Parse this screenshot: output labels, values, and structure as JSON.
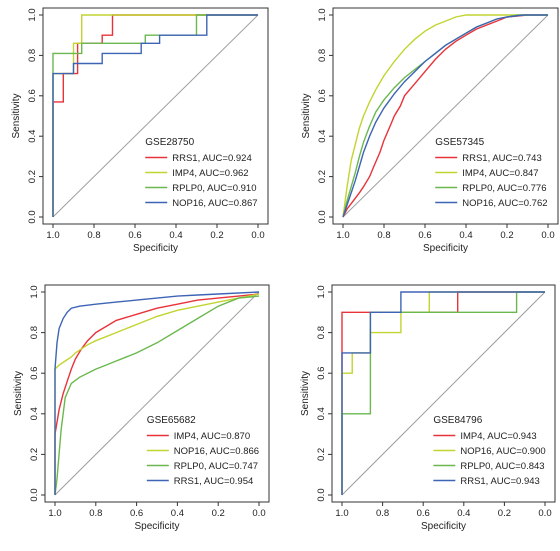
{
  "colors": {
    "red": "#e8333a",
    "yellow": "#c2d430",
    "green": "#6ab84e",
    "blue": "#3e64b6",
    "diag": "#9e9e9e",
    "axis": "#333333"
  },
  "chart_data": [
    {
      "type": "line",
      "dataset": "GSE28750",
      "xlabel": "Specificity",
      "ylabel": "Sensitivity",
      "xlim": [
        1.0,
        0.0
      ],
      "ylim": [
        0.0,
        1.0
      ],
      "x_ticks": [
        "1.0",
        "0.8",
        "0.6",
        "0.4",
        "0.2",
        "0.0"
      ],
      "y_ticks": [
        "0.0",
        "0.2",
        "0.4",
        "0.6",
        "0.8",
        "1.0"
      ],
      "legend_position": "bottom-right",
      "series": [
        {
          "name": "RRS1, AUC=0.924",
          "color": "red",
          "points": [
            [
              1,
              0
            ],
            [
              1,
              0.57
            ],
            [
              0.95,
              0.57
            ],
            [
              0.95,
              0.71
            ],
            [
              0.88,
              0.71
            ],
            [
              0.88,
              0.86
            ],
            [
              0.76,
              0.86
            ],
            [
              0.76,
              0.9
            ],
            [
              0.71,
              0.9
            ],
            [
              0.71,
              1
            ],
            [
              0,
              1
            ]
          ]
        },
        {
          "name": "IMP4, AUC=0.962",
          "color": "yellow",
          "points": [
            [
              1,
              0
            ],
            [
              1,
              0.71
            ],
            [
              0.9,
              0.71
            ],
            [
              0.9,
              0.86
            ],
            [
              0.86,
              0.86
            ],
            [
              0.86,
              1
            ],
            [
              0,
              1
            ]
          ]
        },
        {
          "name": "RPLP0, AUC=0.910",
          "color": "green",
          "points": [
            [
              1,
              0
            ],
            [
              1,
              0.81
            ],
            [
              0.86,
              0.81
            ],
            [
              0.86,
              0.86
            ],
            [
              0.55,
              0.86
            ],
            [
              0.55,
              0.9
            ],
            [
              0.3,
              0.9
            ],
            [
              0.3,
              1
            ],
            [
              0,
              1
            ]
          ]
        },
        {
          "name": "NOP16, AUC=0.867",
          "color": "blue",
          "points": [
            [
              1,
              0
            ],
            [
              1,
              0.71
            ],
            [
              0.9,
              0.71
            ],
            [
              0.9,
              0.76
            ],
            [
              0.76,
              0.76
            ],
            [
              0.76,
              0.81
            ],
            [
              0.57,
              0.81
            ],
            [
              0.57,
              0.86
            ],
            [
              0.48,
              0.86
            ],
            [
              0.48,
              0.9
            ],
            [
              0.25,
              0.9
            ],
            [
              0.25,
              1
            ],
            [
              0,
              1
            ]
          ]
        }
      ]
    },
    {
      "type": "line",
      "dataset": "GSE57345",
      "xlabel": "Specificity",
      "ylabel": "Sensitivity",
      "xlim": [
        1.0,
        0.0
      ],
      "ylim": [
        0.0,
        1.0
      ],
      "x_ticks": [
        "1.0",
        "0.8",
        "0.6",
        "0.4",
        "0.2",
        "0.0"
      ],
      "y_ticks": [
        "0.0",
        "0.2",
        "0.4",
        "0.6",
        "0.8",
        "1.0"
      ],
      "legend_position": "bottom-right",
      "series": [
        {
          "name": "RRS1, AUC=0.743",
          "color": "red",
          "points": [
            [
              1,
              0
            ],
            [
              0.98,
              0.04
            ],
            [
              0.95,
              0.08
            ],
            [
              0.92,
              0.12
            ],
            [
              0.9,
              0.15
            ],
            [
              0.87,
              0.2
            ],
            [
              0.85,
              0.25
            ],
            [
              0.82,
              0.32
            ],
            [
              0.8,
              0.38
            ],
            [
              0.77,
              0.45
            ],
            [
              0.75,
              0.5
            ],
            [
              0.72,
              0.55
            ],
            [
              0.7,
              0.6
            ],
            [
              0.65,
              0.66
            ],
            [
              0.6,
              0.72
            ],
            [
              0.55,
              0.78
            ],
            [
              0.5,
              0.83
            ],
            [
              0.45,
              0.87
            ],
            [
              0.4,
              0.9
            ],
            [
              0.35,
              0.93
            ],
            [
              0.3,
              0.95
            ],
            [
              0.25,
              0.97
            ],
            [
              0.2,
              0.99
            ],
            [
              0.1,
              1
            ],
            [
              0,
              1
            ]
          ]
        },
        {
          "name": "IMP4, AUC=0.847",
          "color": "yellow",
          "points": [
            [
              1,
              0
            ],
            [
              0.98,
              0.15
            ],
            [
              0.96,
              0.28
            ],
            [
              0.94,
              0.36
            ],
            [
              0.92,
              0.44
            ],
            [
              0.9,
              0.5
            ],
            [
              0.87,
              0.57
            ],
            [
              0.84,
              0.63
            ],
            [
              0.8,
              0.7
            ],
            [
              0.75,
              0.77
            ],
            [
              0.7,
              0.83
            ],
            [
              0.65,
              0.88
            ],
            [
              0.6,
              0.92
            ],
            [
              0.55,
              0.95
            ],
            [
              0.5,
              0.97
            ],
            [
              0.45,
              0.99
            ],
            [
              0.4,
              1
            ],
            [
              0,
              1
            ]
          ]
        },
        {
          "name": "RPLP0, AUC=0.776",
          "color": "green",
          "points": [
            [
              1,
              0
            ],
            [
              0.98,
              0.08
            ],
            [
              0.96,
              0.15
            ],
            [
              0.94,
              0.22
            ],
            [
              0.92,
              0.3
            ],
            [
              0.9,
              0.37
            ],
            [
              0.87,
              0.45
            ],
            [
              0.84,
              0.52
            ],
            [
              0.8,
              0.58
            ],
            [
              0.75,
              0.64
            ],
            [
              0.7,
              0.69
            ],
            [
              0.65,
              0.73
            ],
            [
              0.6,
              0.77
            ],
            [
              0.55,
              0.81
            ],
            [
              0.5,
              0.85
            ],
            [
              0.45,
              0.88
            ],
            [
              0.4,
              0.91
            ],
            [
              0.35,
              0.94
            ],
            [
              0.3,
              0.96
            ],
            [
              0.25,
              0.98
            ],
            [
              0.2,
              0.99
            ],
            [
              0.15,
              1
            ],
            [
              0,
              1
            ]
          ]
        },
        {
          "name": "NOP16, AUC=0.762",
          "color": "blue",
          "points": [
            [
              1,
              0
            ],
            [
              0.98,
              0.06
            ],
            [
              0.96,
              0.12
            ],
            [
              0.94,
              0.18
            ],
            [
              0.92,
              0.25
            ],
            [
              0.9,
              0.32
            ],
            [
              0.87,
              0.4
            ],
            [
              0.84,
              0.47
            ],
            [
              0.8,
              0.54
            ],
            [
              0.75,
              0.61
            ],
            [
              0.7,
              0.67
            ],
            [
              0.65,
              0.72
            ],
            [
              0.6,
              0.77
            ],
            [
              0.55,
              0.81
            ],
            [
              0.5,
              0.85
            ],
            [
              0.45,
              0.88
            ],
            [
              0.4,
              0.91
            ],
            [
              0.35,
              0.94
            ],
            [
              0.3,
              0.96
            ],
            [
              0.25,
              0.98
            ],
            [
              0.2,
              0.99
            ],
            [
              0.12,
              1
            ],
            [
              0,
              1
            ]
          ]
        }
      ]
    },
    {
      "type": "line",
      "dataset": "GSE65682",
      "xlabel": "Specificity",
      "ylabel": "Sensitivity",
      "xlim": [
        1.0,
        0.0
      ],
      "ylim": [
        0.0,
        1.0
      ],
      "x_ticks": [
        "1.0",
        "0.8",
        "0.6",
        "0.4",
        "0.2",
        "0.0"
      ],
      "y_ticks": [
        "0.0",
        "0.2",
        "0.4",
        "0.6",
        "0.8",
        "1.0"
      ],
      "legend_position": "bottom-right",
      "series": [
        {
          "name": "IMP4, AUC=0.870",
          "color": "red",
          "points": [
            [
              1,
              0
            ],
            [
              1,
              0.3
            ],
            [
              0.98,
              0.42
            ],
            [
              0.96,
              0.5
            ],
            [
              0.94,
              0.56
            ],
            [
              0.92,
              0.62
            ],
            [
              0.9,
              0.67
            ],
            [
              0.87,
              0.72
            ],
            [
              0.84,
              0.76
            ],
            [
              0.8,
              0.8
            ],
            [
              0.75,
              0.83
            ],
            [
              0.7,
              0.86
            ],
            [
              0.6,
              0.89
            ],
            [
              0.5,
              0.92
            ],
            [
              0.4,
              0.94
            ],
            [
              0.3,
              0.96
            ],
            [
              0.2,
              0.97
            ],
            [
              0.1,
              0.98
            ],
            [
              0,
              0.99
            ]
          ]
        },
        {
          "name": "NOP16, AUC=0.866",
          "color": "yellow",
          "points": [
            [
              1,
              0
            ],
            [
              1,
              0.62
            ],
            [
              0.98,
              0.64
            ],
            [
              0.95,
              0.66
            ],
            [
              0.92,
              0.68
            ],
            [
              0.9,
              0.7
            ],
            [
              0.87,
              0.72
            ],
            [
              0.84,
              0.74
            ],
            [
              0.8,
              0.76
            ],
            [
              0.75,
              0.78
            ],
            [
              0.7,
              0.8
            ],
            [
              0.6,
              0.84
            ],
            [
              0.5,
              0.88
            ],
            [
              0.4,
              0.91
            ],
            [
              0.3,
              0.93
            ],
            [
              0.2,
              0.95
            ],
            [
              0.1,
              0.97
            ],
            [
              0,
              0.99
            ]
          ]
        },
        {
          "name": "RPLP0, AUC=0.747",
          "color": "green",
          "points": [
            [
              1,
              0
            ],
            [
              0.99,
              0.08
            ],
            [
              0.97,
              0.32
            ],
            [
              0.95,
              0.48
            ],
            [
              0.92,
              0.55
            ],
            [
              0.88,
              0.58
            ],
            [
              0.84,
              0.6
            ],
            [
              0.8,
              0.62
            ],
            [
              0.75,
              0.64
            ],
            [
              0.7,
              0.66
            ],
            [
              0.6,
              0.7
            ],
            [
              0.5,
              0.75
            ],
            [
              0.4,
              0.81
            ],
            [
              0.3,
              0.87
            ],
            [
              0.2,
              0.93
            ],
            [
              0.1,
              0.97
            ],
            [
              0,
              0.98
            ]
          ]
        },
        {
          "name": "RRS1, AUC=0.954",
          "color": "blue",
          "points": [
            [
              1,
              0
            ],
            [
              1,
              0.62
            ],
            [
              0.99,
              0.75
            ],
            [
              0.98,
              0.82
            ],
            [
              0.96,
              0.87
            ],
            [
              0.94,
              0.9
            ],
            [
              0.92,
              0.92
            ],
            [
              0.88,
              0.93
            ],
            [
              0.8,
              0.94
            ],
            [
              0.7,
              0.95
            ],
            [
              0.6,
              0.96
            ],
            [
              0.5,
              0.97
            ],
            [
              0.4,
              0.98
            ],
            [
              0.3,
              0.985
            ],
            [
              0.2,
              0.99
            ],
            [
              0,
              1
            ]
          ]
        }
      ]
    },
    {
      "type": "line",
      "dataset": "GSE84796",
      "xlabel": "Specificity",
      "ylabel": "Sensitivity",
      "xlim": [
        1.0,
        0.0
      ],
      "ylim": [
        0.0,
        1.0
      ],
      "x_ticks": [
        "1.0",
        "0.8",
        "0.6",
        "0.4",
        "0.2",
        "0.0"
      ],
      "y_ticks": [
        "0.0",
        "0.2",
        "0.4",
        "0.6",
        "0.8",
        "1.0"
      ],
      "legend_position": "bottom-right",
      "series": [
        {
          "name": "IMP4, AUC=0.943",
          "color": "red",
          "points": [
            [
              1,
              0
            ],
            [
              1,
              0.9
            ],
            [
              0.86,
              0.9
            ],
            [
              0.86,
              0.9
            ],
            [
              0.43,
              0.9
            ],
            [
              0.43,
              1
            ],
            [
              0,
              1
            ]
          ]
        },
        {
          "name": "NOP16, AUC=0.900",
          "color": "yellow",
          "points": [
            [
              1,
              0
            ],
            [
              1,
              0.6
            ],
            [
              0.95,
              0.6
            ],
            [
              0.95,
              0.7
            ],
            [
              0.86,
              0.7
            ],
            [
              0.86,
              0.8
            ],
            [
              0.71,
              0.8
            ],
            [
              0.71,
              0.9
            ],
            [
              0.57,
              0.9
            ],
            [
              0.57,
              1
            ],
            [
              0,
              1
            ]
          ]
        },
        {
          "name": "RPLP0, AUC=0.843",
          "color": "green",
          "points": [
            [
              1,
              0
            ],
            [
              1,
              0.4
            ],
            [
              0.86,
              0.4
            ],
            [
              0.86,
              0.9
            ],
            [
              0.14,
              0.9
            ],
            [
              0.14,
              1
            ],
            [
              0,
              1
            ]
          ]
        },
        {
          "name": "RRS1, AUC=0.943",
          "color": "blue",
          "points": [
            [
              1,
              0
            ],
            [
              1,
              0.7
            ],
            [
              0.86,
              0.7
            ],
            [
              0.86,
              0.9
            ],
            [
              0.71,
              0.9
            ],
            [
              0.71,
              1
            ],
            [
              0,
              1
            ]
          ]
        }
      ]
    }
  ]
}
